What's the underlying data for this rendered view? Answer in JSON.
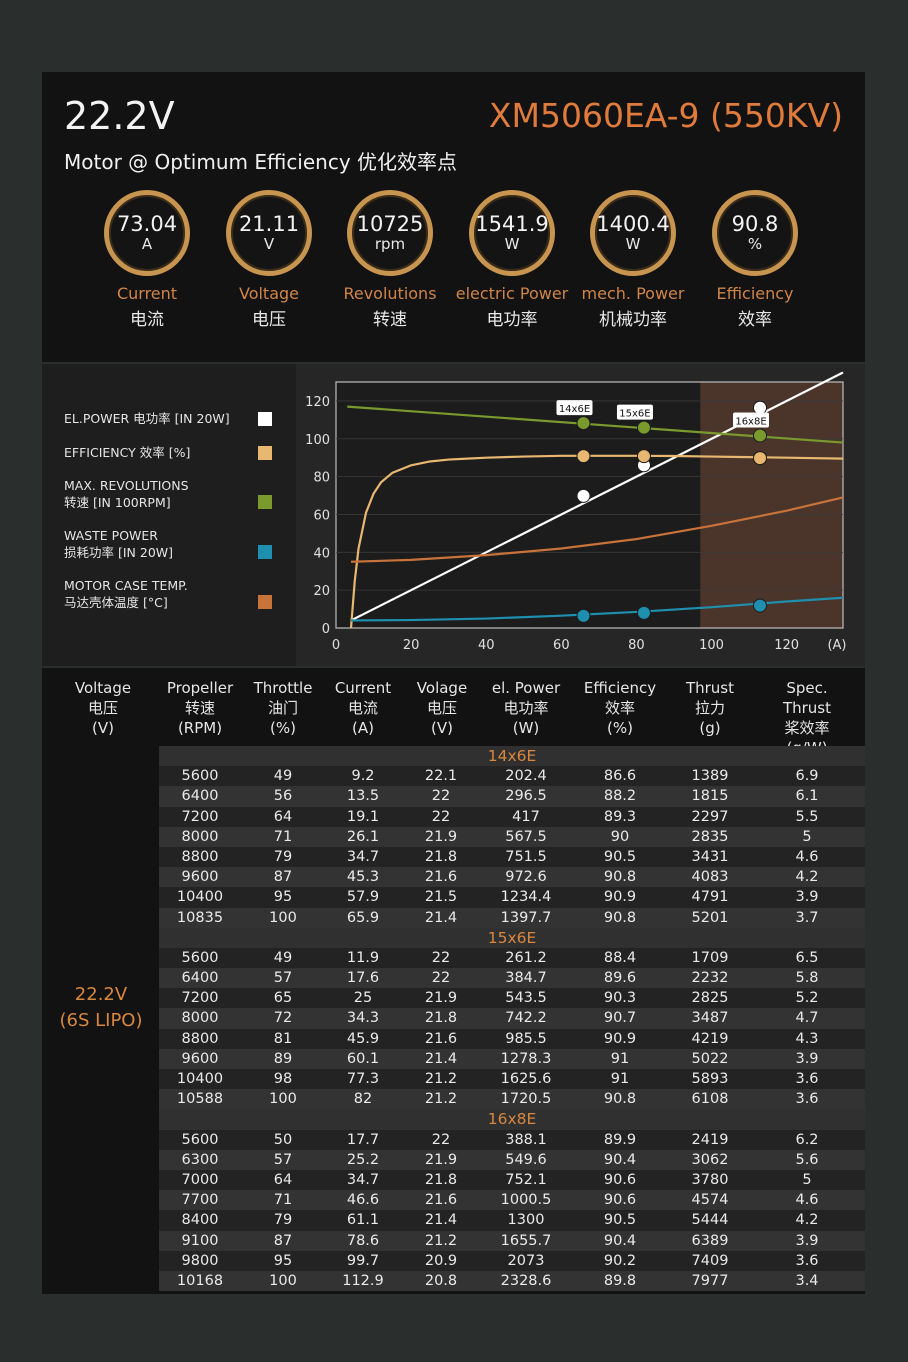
{
  "header": {
    "voltage": "22.2V",
    "model": "XM5060EA-9 (550KV)",
    "subtitle": "Motor @ Optimum Efficiency  优化效率点"
  },
  "gauges": [
    {
      "value": "73.04",
      "unit": "A",
      "label_en": "Current",
      "label_cn": "电流"
    },
    {
      "value": "21.11",
      "unit": "V",
      "label_en": "Voltage",
      "label_cn": "电压"
    },
    {
      "value": "10725",
      "unit": "rpm",
      "label_en": "Revolutions",
      "label_cn": "转速"
    },
    {
      "value": "1541.9",
      "unit": "W",
      "label_en": "electric Power",
      "label_cn": "电功率"
    },
    {
      "value": "1400.4",
      "unit": "W",
      "label_en": "mech. Power",
      "label_cn": "机械功率"
    },
    {
      "value": "90.8",
      "unit": "%",
      "label_en": "Efficiency",
      "label_cn": "效率"
    }
  ],
  "legend": [
    {
      "line1": "EL.POWER 电功率 [IN 20W]",
      "line2": "",
      "color": "#ffffff"
    },
    {
      "line1": "EFFICIENCY 效率 [%]",
      "line2": "",
      "color": "#e8b870"
    },
    {
      "line1": "MAX. REVOLUTIONS",
      "line2": "转速 [IN 100RPM]",
      "color": "#7a9a2e"
    },
    {
      "line1": "WASTE POWER",
      "line2": "损耗功率 [IN 20W]",
      "color": "#1e8fae"
    },
    {
      "line1": "MOTOR CASE TEMP.",
      "line2": "马达壳体温度 [°C]",
      "color": "#c8733a"
    }
  ],
  "chart_data": {
    "type": "line",
    "xlabel": "(A)",
    "xlim": [
      0,
      135
    ],
    "ylim": [
      0,
      130
    ],
    "xticks": [
      "0",
      "20",
      "40",
      "60",
      "80",
      "100",
      "120"
    ],
    "xtick_values": [
      0,
      20,
      40,
      60,
      80,
      100,
      120
    ],
    "yticks": [
      "0",
      "20",
      "40",
      "60",
      "80",
      "100",
      "120"
    ],
    "ytick_values": [
      0,
      20,
      40,
      60,
      80,
      100,
      120
    ],
    "shaded_region": [
      97,
      135
    ],
    "series": [
      {
        "color": "#ffffff",
        "x": [
          4,
          135
        ],
        "y": [
          4,
          135
        ]
      },
      {
        "color": "#e8b870",
        "x": [
          4,
          5,
          6,
          8,
          10,
          12,
          15,
          20,
          25,
          30,
          35,
          40,
          50,
          60,
          70,
          80,
          90,
          100,
          110,
          120,
          135
        ],
        "y": [
          0,
          25,
          42,
          61,
          71,
          77,
          82,
          86,
          88,
          89,
          89.5,
          90,
          90.6,
          91,
          91,
          91,
          90.9,
          90.6,
          90.3,
          90,
          89.5
        ]
      },
      {
        "color": "#7a9a2e",
        "x": [
          3,
          135
        ],
        "y": [
          117,
          98
        ]
      },
      {
        "color": "#1e8fae",
        "x": [
          4,
          20,
          40,
          60,
          80,
          100,
          120,
          135
        ],
        "y": [
          4,
          4.2,
          5,
          6.5,
          8.5,
          11,
          14,
          16
        ]
      },
      {
        "color": "#c8733a",
        "x": [
          4,
          20,
          40,
          60,
          80,
          100,
          120,
          135
        ],
        "y": [
          35,
          36,
          38.5,
          42,
          47,
          54,
          62,
          69
        ]
      }
    ],
    "markers": [
      {
        "label": "14x6E",
        "points": [
          {
            "x": 65.9,
            "y": 69.8,
            "color": "#ffffff"
          },
          {
            "x": 65.9,
            "y": 90.8,
            "color": "#e8b870"
          },
          {
            "x": 65.9,
            "y": 108.3,
            "color": "#7a9a2e"
          },
          {
            "x": 65.9,
            "y": 6.4,
            "color": "#1e8fae"
          }
        ]
      },
      {
        "label": "15x6E",
        "points": [
          {
            "x": 82,
            "y": 86,
            "color": "#ffffff"
          },
          {
            "x": 82,
            "y": 90.8,
            "color": "#e8b870"
          },
          {
            "x": 82,
            "y": 105.9,
            "color": "#7a9a2e"
          },
          {
            "x": 82,
            "y": 8,
            "color": "#1e8fae"
          }
        ]
      },
      {
        "label": "16x8E",
        "points": [
          {
            "x": 112.9,
            "y": 116.4,
            "color": "#ffffff"
          },
          {
            "x": 112.9,
            "y": 89.8,
            "color": "#e8b870"
          },
          {
            "x": 112.9,
            "y": 101.7,
            "color": "#7a9a2e"
          },
          {
            "x": 112.9,
            "y": 11.8,
            "color": "#1e8fae"
          }
        ]
      }
    ]
  },
  "table": {
    "headers": [
      {
        "l1": "Voltage",
        "l2": "电压",
        "l3": "(V)"
      },
      {
        "l1": "Propeller",
        "l2": "转速",
        "l3": "(RPM)"
      },
      {
        "l1": "Throttle",
        "l2": "油门",
        "l3": "(%)"
      },
      {
        "l1": "Current",
        "l2": "电流",
        "l3": "(A)"
      },
      {
        "l1": "Volage",
        "l2": "电压",
        "l3": "(V)"
      },
      {
        "l1": "el. Power",
        "l2": "电功率",
        "l3": "(W)"
      },
      {
        "l1": "Efficiency",
        "l2": "效率",
        "l3": "(%)"
      },
      {
        "l1": "Thrust",
        "l2": "拉力",
        "l3": "(g)"
      },
      {
        "l1": "Spec. Thrust",
        "l2": "桨效率",
        "l3": "(g/W)"
      }
    ],
    "voltage_label_1": "22.2V",
    "voltage_label_2": "(6S LIPO)",
    "groups": [
      {
        "name": "14x6E",
        "rows": [
          [
            "5600",
            "49",
            "9.2",
            "22.1",
            "202.4",
            "86.6",
            "1389",
            "6.9"
          ],
          [
            "6400",
            "56",
            "13.5",
            "22",
            "296.5",
            "88.2",
            "1815",
            "6.1"
          ],
          [
            "7200",
            "64",
            "19.1",
            "22",
            "417",
            "89.3",
            "2297",
            "5.5"
          ],
          [
            "8000",
            "71",
            "26.1",
            "21.9",
            "567.5",
            "90",
            "2835",
            "5"
          ],
          [
            "8800",
            "79",
            "34.7",
            "21.8",
            "751.5",
            "90.5",
            "3431",
            "4.6"
          ],
          [
            "9600",
            "87",
            "45.3",
            "21.6",
            "972.6",
            "90.8",
            "4083",
            "4.2"
          ],
          [
            "10400",
            "95",
            "57.9",
            "21.5",
            "1234.4",
            "90.9",
            "4791",
            "3.9"
          ],
          [
            "10835",
            "100",
            "65.9",
            "21.4",
            "1397.7",
            "90.8",
            "5201",
            "3.7"
          ]
        ]
      },
      {
        "name": "15x6E",
        "rows": [
          [
            "5600",
            "49",
            "11.9",
            "22",
            "261.2",
            "88.4",
            "1709",
            "6.5"
          ],
          [
            "6400",
            "57",
            "17.6",
            "22",
            "384.7",
            "89.6",
            "2232",
            "5.8"
          ],
          [
            "7200",
            "65",
            "25",
            "21.9",
            "543.5",
            "90.3",
            "2825",
            "5.2"
          ],
          [
            "8000",
            "72",
            "34.3",
            "21.8",
            "742.2",
            "90.7",
            "3487",
            "4.7"
          ],
          [
            "8800",
            "81",
            "45.9",
            "21.6",
            "985.5",
            "90.9",
            "4219",
            "4.3"
          ],
          [
            "9600",
            "89",
            "60.1",
            "21.4",
            "1278.3",
            "91",
            "5022",
            "3.9"
          ],
          [
            "10400",
            "98",
            "77.3",
            "21.2",
            "1625.6",
            "91",
            "5893",
            "3.6"
          ],
          [
            "10588",
            "100",
            "82",
            "21.2",
            "1720.5",
            "90.8",
            "6108",
            "3.6"
          ]
        ]
      },
      {
        "name": "16x8E",
        "rows": [
          [
            "5600",
            "50",
            "17.7",
            "22",
            "388.1",
            "89.9",
            "2419",
            "6.2"
          ],
          [
            "6300",
            "57",
            "25.2",
            "21.9",
            "549.6",
            "90.4",
            "3062",
            "5.6"
          ],
          [
            "7000",
            "64",
            "34.7",
            "21.8",
            "752.1",
            "90.6",
            "3780",
            "5"
          ],
          [
            "7700",
            "71",
            "46.6",
            "21.6",
            "1000.5",
            "90.6",
            "4574",
            "4.6"
          ],
          [
            "8400",
            "79",
            "61.1",
            "21.4",
            "1300",
            "90.5",
            "5444",
            "4.2"
          ],
          [
            "9100",
            "87",
            "78.6",
            "21.2",
            "1655.7",
            "90.4",
            "6389",
            "3.9"
          ],
          [
            "9800",
            "95",
            "99.7",
            "20.9",
            "2073",
            "90.2",
            "7409",
            "3.6"
          ],
          [
            "10168",
            "100",
            "112.9",
            "20.8",
            "2328.6",
            "89.8",
            "7977",
            "3.4"
          ]
        ]
      }
    ]
  }
}
